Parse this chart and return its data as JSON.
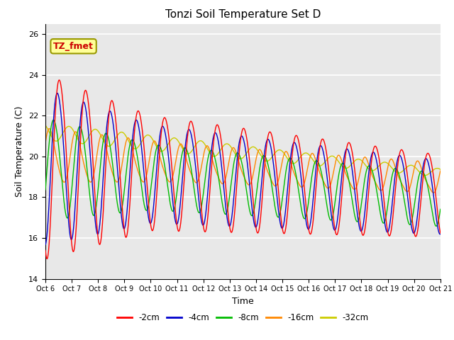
{
  "title": "Tonzi Soil Temperature Set D",
  "xlabel": "Time",
  "ylabel": "Soil Temperature (C)",
  "ylim": [
    14,
    26.5
  ],
  "xlim": [
    0,
    360
  ],
  "bg_color": "#e8e8e8",
  "annotation_text": "TZ_fmet",
  "annotation_bg": "#ffff99",
  "annotation_border": "#999900",
  "tick_labels": [
    "Oct 6",
    "Oct 7",
    "Oct 8",
    "Oct 9",
    "Oct 10",
    "Oct 11",
    "Oct 12",
    "Oct 13",
    "Oct 14",
    "Oct 15",
    "Oct 16",
    "Oct 17",
    "Oct 18",
    "Oct 19",
    "Oct 20",
    "Oct 21"
  ],
  "tick_positions": [
    0,
    24,
    48,
    72,
    96,
    120,
    144,
    168,
    192,
    216,
    240,
    264,
    288,
    312,
    336,
    360
  ],
  "series_colors": [
    "#ff0000",
    "#0000cc",
    "#00bb00",
    "#ff8800",
    "#cccc00"
  ],
  "series_labels": [
    "-2cm",
    "-4cm",
    "-8cm",
    "-16cm",
    "-32cm"
  ]
}
